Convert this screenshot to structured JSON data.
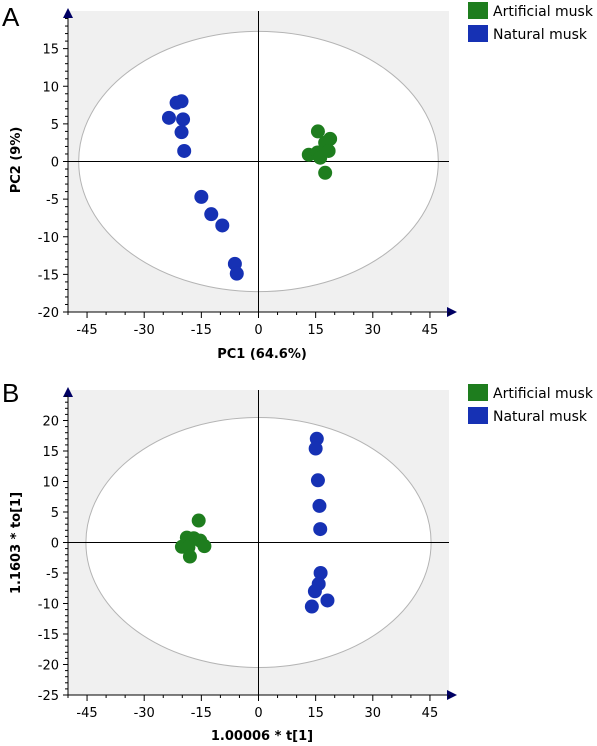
{
  "colors": {
    "artificial": "#1e7d1e",
    "natural": "#1631b4",
    "plot_background": "#f0f0f0",
    "ellipse": "#b4b4b4",
    "axis": "#000000",
    "arrow": "#000064"
  },
  "chart_data": [
    {
      "panel_label": "A",
      "type": "scatter",
      "xlabel": "PC1 (64.6%)",
      "ylabel": "PC2 (9%)",
      "xlim": [
        -50,
        50
      ],
      "ylim": [
        -20,
        20
      ],
      "xticks": [
        -45,
        -30,
        -15,
        0,
        15,
        30,
        45
      ],
      "yticks": [
        -20,
        -15,
        -10,
        -5,
        0,
        5,
        10,
        15
      ],
      "ellipse": {
        "rx": 47.2,
        "ry": 17.3
      },
      "legend_position": "top-right-outside",
      "series": [
        {
          "name": "Artificial musk",
          "color": "#1e7d1e",
          "points": [
            [
              15.6,
              4.0
            ],
            [
              18.8,
              3.0
            ],
            [
              17.5,
              2.5
            ],
            [
              13.2,
              0.9
            ],
            [
              15.5,
              1.2
            ],
            [
              16.2,
              0.5
            ],
            [
              18.4,
              1.4
            ],
            [
              17.5,
              -1.5
            ]
          ]
        },
        {
          "name": "Natural musk",
          "color": "#1631b4",
          "points": [
            [
              -21.5,
              7.8
            ],
            [
              -20.2,
              8.0
            ],
            [
              -23.5,
              5.8
            ],
            [
              -19.8,
              5.6
            ],
            [
              -20.2,
              3.9
            ],
            [
              -19.5,
              1.4
            ],
            [
              -15,
              -4.7
            ],
            [
              -12.4,
              -7.0
            ],
            [
              -9.5,
              -8.5
            ],
            [
              -6.2,
              -13.6
            ],
            [
              -5.7,
              -14.9
            ]
          ]
        }
      ]
    },
    {
      "panel_label": "B",
      "type": "scatter",
      "xlabel": "1.00006 * t[1]",
      "ylabel": "1.1603 * to[1]",
      "xlim": [
        -50,
        50
      ],
      "ylim": [
        -25,
        25
      ],
      "xticks": [
        -45,
        -30,
        -15,
        0,
        15,
        30,
        45
      ],
      "yticks": [
        -25,
        -20,
        -15,
        -10,
        -5,
        0,
        5,
        10,
        15,
        20
      ],
      "ellipse": {
        "rx": 45.3,
        "ry": 20.5
      },
      "legend_position": "top-right-outside",
      "series": [
        {
          "name": "Artificial musk",
          "color": "#1e7d1e",
          "points": [
            [
              -15.7,
              3.6
            ],
            [
              -18.8,
              0.8
            ],
            [
              -17.0,
              0.7
            ],
            [
              -20.1,
              -0.7
            ],
            [
              -15.3,
              0.3
            ],
            [
              -18.4,
              -0.8
            ],
            [
              -14.2,
              -0.6
            ],
            [
              -18.0,
              -2.3
            ]
          ]
        },
        {
          "name": "Natural musk",
          "color": "#1631b4",
          "points": [
            [
              15.3,
              17.0
            ],
            [
              15.0,
              15.4
            ],
            [
              15.6,
              10.2
            ],
            [
              16.0,
              6.0
            ],
            [
              16.2,
              2.2
            ],
            [
              16.3,
              -5.0
            ],
            [
              15.8,
              -6.8
            ],
            [
              14.8,
              -8.0
            ],
            [
              18.1,
              -9.5
            ],
            [
              14.0,
              -10.5
            ]
          ]
        }
      ]
    }
  ]
}
